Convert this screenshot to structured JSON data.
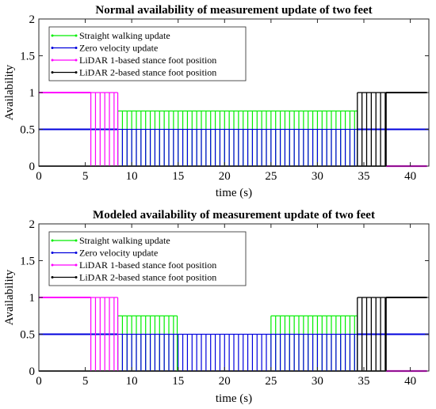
{
  "chart_data": [
    {
      "type": "line",
      "title": "Normal availability of measurement update of two feet",
      "xlabel": "time (s)",
      "ylabel": "Availability",
      "xlim": [
        0,
        42
      ],
      "ylim": [
        0,
        2
      ],
      "xticks": [
        "0",
        "5",
        "10",
        "15",
        "20",
        "25",
        "30",
        "35",
        "40"
      ],
      "yticks": [
        "0",
        "0.5",
        "1",
        "1.5",
        "2"
      ],
      "grid": false,
      "legend_position": "top-left",
      "series": [
        {
          "name": "Straight walking update",
          "color": "#00ee00",
          "level": 0.75,
          "pulse_start": 8.5,
          "pulse_end": 34.3,
          "pulse_period": 0.5
        },
        {
          "name": "Zero velocity update",
          "color": "#0000dd",
          "level": 0.5,
          "pulse_start": 8.5,
          "pulse_end": 34.3,
          "pulse_period": 0.5,
          "steady_intervals": [
            [
              0,
              8.5
            ],
            [
              34.3,
              42
            ]
          ]
        },
        {
          "name": "LiDAR 1-based stance foot position",
          "color": "#ff00ff",
          "level": 1,
          "steady_intervals": [
            [
              0,
              5.6
            ]
          ],
          "pulse_start": 5.6,
          "pulse_end": 8.5,
          "pulse_period": 0.5,
          "low_interval": [
            37.4,
            41.8
          ]
        },
        {
          "name": "LiDAR 2-based stance foot position",
          "color": "#000000",
          "level": 1,
          "pulse_start": 34.3,
          "pulse_end": 37.4,
          "pulse_period": 0.5,
          "steady_intervals": [
            [
              37.4,
              41.8
            ]
          ]
        }
      ]
    },
    {
      "type": "line",
      "title": "Modeled availability of measurement update of two feet",
      "xlabel": "time (s)",
      "ylabel": "Availability",
      "xlim": [
        0,
        42
      ],
      "ylim": [
        0,
        2
      ],
      "xticks": [
        "0",
        "5",
        "10",
        "15",
        "20",
        "25",
        "30",
        "35",
        "40"
      ],
      "yticks": [
        "0",
        "0.5",
        "1",
        "1.5",
        "2"
      ],
      "grid": false,
      "legend_position": "top-left",
      "series": [
        {
          "name": "Straight walking update",
          "color": "#00ee00",
          "level": 0.75,
          "pulse_intervals": [
            [
              8.5,
              14.9
            ],
            [
              25,
              34.3
            ]
          ],
          "pulse_period": 0.5
        },
        {
          "name": "Zero velocity update",
          "color": "#0000dd",
          "level": 0.5,
          "pulse_start": 8.5,
          "pulse_end": 34.3,
          "pulse_period": 0.5,
          "steady_intervals": [
            [
              0,
              8.5
            ],
            [
              34.3,
              42
            ]
          ]
        },
        {
          "name": "LiDAR 1-based stance foot position",
          "color": "#ff00ff",
          "level": 1,
          "steady_intervals": [
            [
              0,
              5.6
            ]
          ],
          "pulse_start": 5.6,
          "pulse_end": 8.5,
          "pulse_period": 0.5,
          "low_interval": [
            37.4,
            41.8
          ]
        },
        {
          "name": "LiDAR 2-based stance foot position",
          "color": "#000000",
          "level": 1,
          "pulse_start": 34.3,
          "pulse_end": 37.4,
          "pulse_period": 0.5,
          "steady_intervals": [
            [
              37.4,
              41.8
            ]
          ]
        }
      ]
    }
  ]
}
